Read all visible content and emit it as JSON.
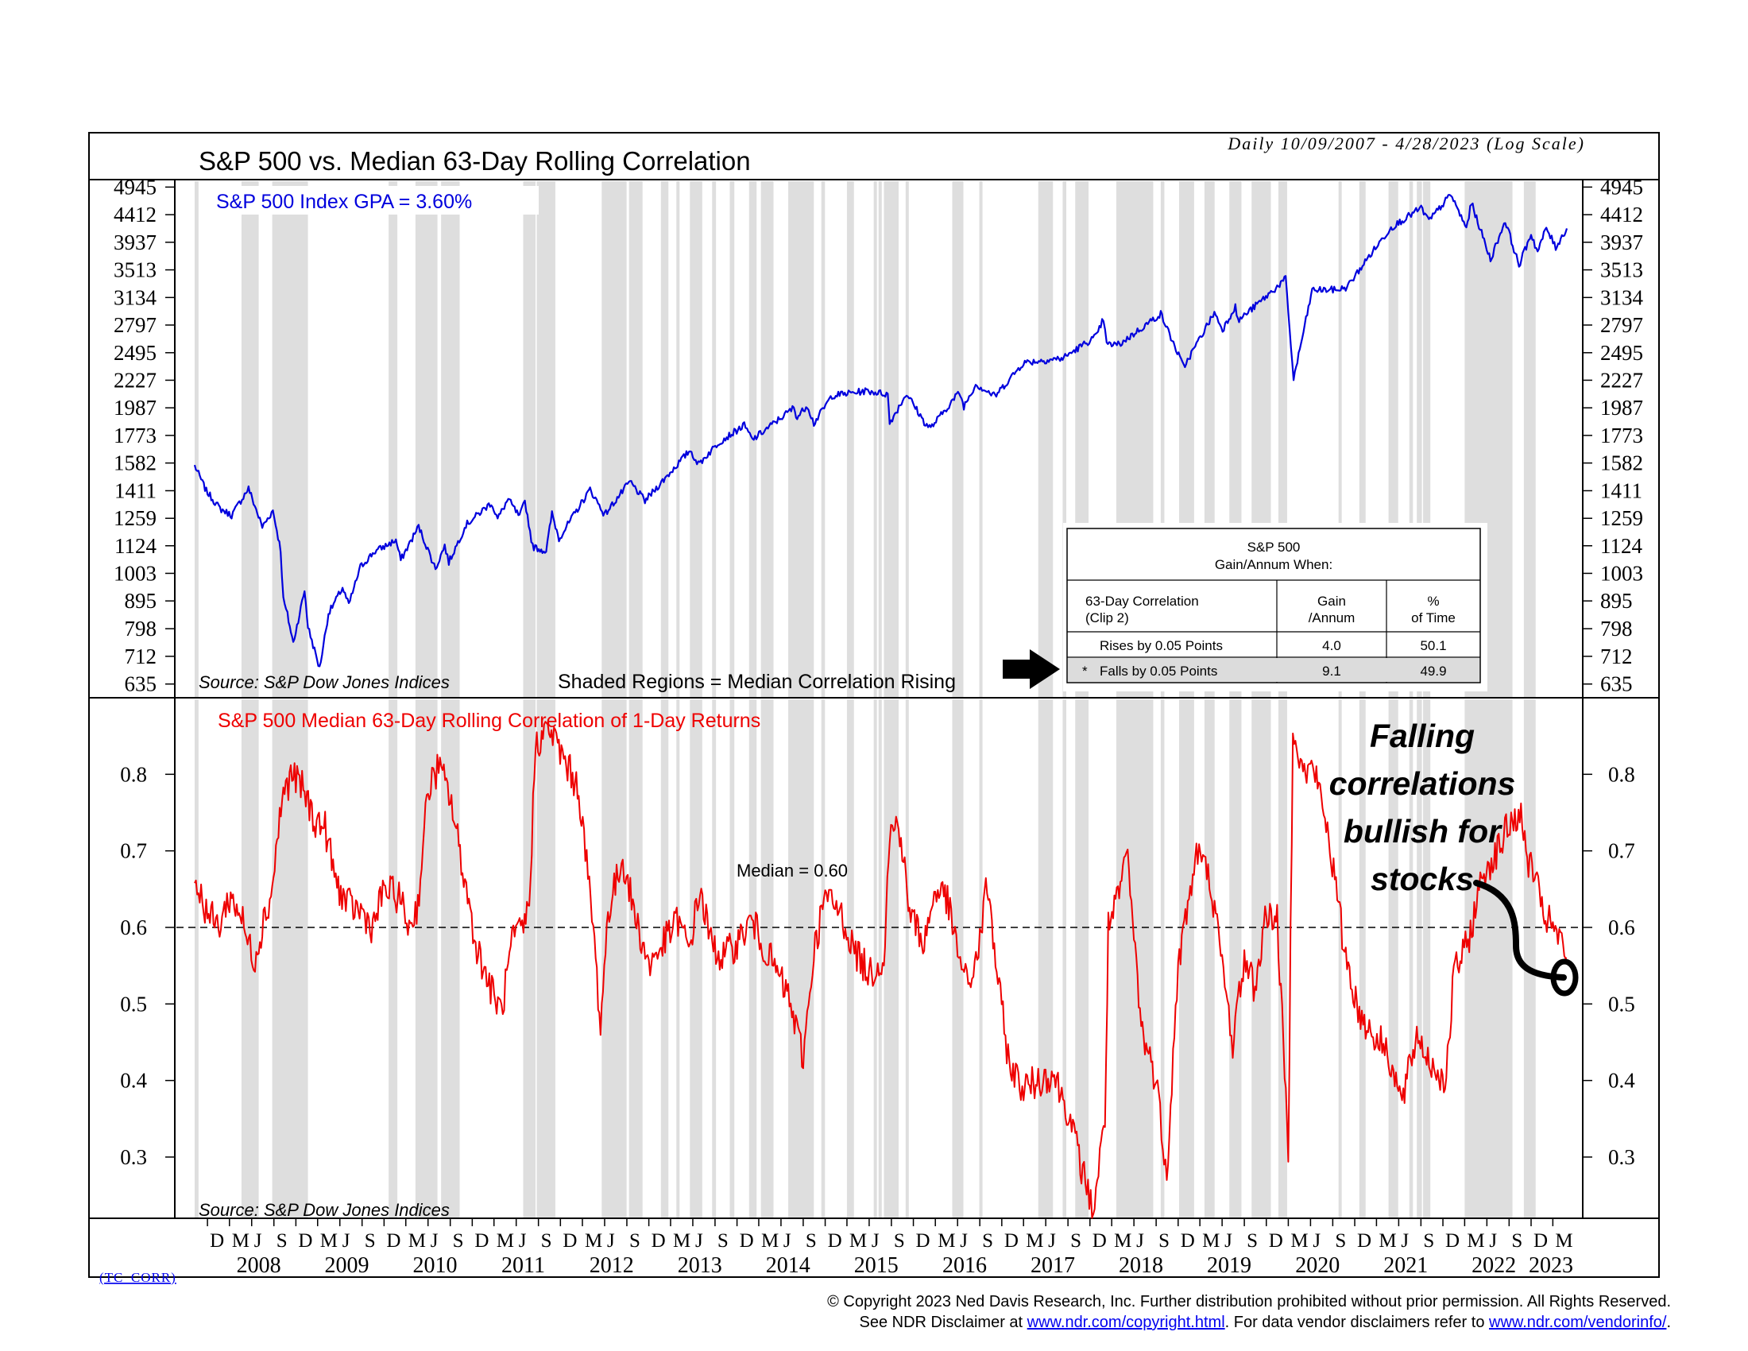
{
  "header": {
    "title": "S&P 500 vs. Median 63-Day Rolling Correlation",
    "date_range": "Daily 10/09/2007 - 4/28/2023 (Log Scale)"
  },
  "top_panel": {
    "series_label": "S&P 500 Index GPA = 3.60%",
    "source": "Source: S&P Dow Jones Indices",
    "shaded_note": "Shaded Regions = Median Correlation Rising",
    "y_ticks": [
      "4945",
      "4412",
      "3937",
      "3513",
      "3134",
      "2797",
      "2495",
      "2227",
      "1987",
      "1773",
      "1582",
      "1411",
      "1259",
      "1124",
      "1003",
      "895",
      "798",
      "712",
      "635"
    ],
    "line_color": "#0000dd"
  },
  "bottom_panel": {
    "series_label": "S&P 500 Median 63-Day Rolling Correlation of 1-Day Returns",
    "source": "Source: S&P Dow Jones Indices",
    "median_label": "Median = 0.60",
    "y_ticks": [
      "0.8",
      "0.7",
      "0.6",
      "0.5",
      "0.4",
      "0.3"
    ],
    "line_color": "#ee0000"
  },
  "table": {
    "title_line1": "S&P 500",
    "title_line2": "Gain/Annum When:",
    "col1_line1": "63-Day Correlation",
    "col1_line2": "(Clip 2)",
    "col2_line1": "Gain",
    "col2_line2": "/Annum",
    "col3_line1": "%",
    "col3_line2": "of Time",
    "row1_label": "Rises by 0.05 Points",
    "row1_gain": "4.0",
    "row1_pct": "50.1",
    "row2_marker": "*",
    "row2_label": "Falls by 0.05 Points",
    "row2_gain": "9.1",
    "row2_pct": "49.9"
  },
  "annotation": {
    "line1": "Falling",
    "line2": "correlations",
    "line3": "bullish for",
    "line4": "stocks"
  },
  "x_axis": {
    "month_letters": [
      "D",
      "M",
      "J",
      "S"
    ],
    "years": [
      "2008",
      "2009",
      "2010",
      "2011",
      "2012",
      "2013",
      "2014",
      "2015",
      "2016",
      "2017",
      "2018",
      "2019",
      "2020",
      "2021",
      "2022",
      "2023"
    ]
  },
  "footer": {
    "code": "(TC_CORR)",
    "copyright": "© Copyright 2023 Ned Davis Research, Inc.  Further distribution prohibited without prior permission.  All Rights Reserved.",
    "disclaimer_prefix": "See NDR Disclaimer at ",
    "disclaimer_link1": "www.ndr.com/copyright.html",
    "disclaimer_mid": ". For data vendor disclaimers refer to ",
    "disclaimer_link2": "www.ndr.com/vendorinfo/",
    "disclaimer_suffix": "."
  },
  "chart_data": {
    "type": "line",
    "x_range": [
      "2007-10-09",
      "2023-04-28"
    ],
    "top": {
      "name": "S&P 500 Index",
      "scale": "log",
      "ylim": [
        600,
        5100
      ],
      "points": [
        [
          "2007-10-09",
          1565
        ],
        [
          "2007-11-26",
          1410
        ],
        [
          "2008-01-22",
          1310
        ],
        [
          "2008-03-10",
          1275
        ],
        [
          "2008-05-19",
          1425
        ],
        [
          "2008-07-15",
          1215
        ],
        [
          "2008-08-28",
          1300
        ],
        [
          "2008-09-29",
          1105
        ],
        [
          "2008-10-10",
          900
        ],
        [
          "2008-10-27",
          845
        ],
        [
          "2008-11-20",
          752
        ],
        [
          "2009-01-06",
          935
        ],
        [
          "2009-01-20",
          805
        ],
        [
          "2009-03-09",
          677
        ],
        [
          "2009-04-15",
          850
        ],
        [
          "2009-06-12",
          945
        ],
        [
          "2009-07-08",
          880
        ],
        [
          "2009-08-25",
          1030
        ],
        [
          "2009-10-20",
          1095
        ],
        [
          "2010-01-19",
          1150
        ],
        [
          "2010-02-08",
          1060
        ],
        [
          "2010-04-23",
          1217
        ],
        [
          "2010-07-02",
          1022
        ],
        [
          "2010-08-09",
          1125
        ],
        [
          "2010-08-26",
          1050
        ],
        [
          "2010-11-05",
          1225
        ],
        [
          "2011-02-18",
          1343
        ],
        [
          "2011-03-16",
          1256
        ],
        [
          "2011-04-29",
          1363
        ],
        [
          "2011-06-15",
          1265
        ],
        [
          "2011-07-07",
          1353
        ],
        [
          "2011-08-08",
          1120
        ],
        [
          "2011-10-03",
          1099
        ],
        [
          "2011-10-27",
          1285
        ],
        [
          "2011-11-25",
          1158
        ],
        [
          "2012-04-02",
          1419
        ],
        [
          "2012-06-01",
          1278
        ],
        [
          "2012-09-14",
          1465
        ],
        [
          "2012-11-15",
          1353
        ],
        [
          "2013-05-21",
          1669
        ],
        [
          "2013-06-24",
          1573
        ],
        [
          "2013-09-18",
          1725
        ],
        [
          "2013-12-31",
          1848
        ],
        [
          "2014-02-03",
          1741
        ],
        [
          "2014-07-24",
          1988
        ],
        [
          "2014-08-07",
          1909
        ],
        [
          "2014-09-18",
          2011
        ],
        [
          "2014-10-15",
          1862
        ],
        [
          "2014-12-29",
          2090
        ],
        [
          "2015-05-21",
          2131
        ],
        [
          "2015-08-17",
          2102
        ],
        [
          "2015-08-25",
          1867
        ],
        [
          "2015-11-03",
          2109
        ],
        [
          "2016-01-20",
          1859
        ],
        [
          "2016-02-11",
          1829
        ],
        [
          "2016-06-08",
          2119
        ],
        [
          "2016-06-27",
          2000
        ],
        [
          "2016-08-15",
          2190
        ],
        [
          "2016-11-03",
          2085
        ],
        [
          "2017-03-01",
          2395
        ],
        [
          "2017-08-10",
          2438
        ],
        [
          "2017-12-29",
          2674
        ],
        [
          "2018-01-26",
          2873
        ],
        [
          "2018-02-08",
          2581
        ],
        [
          "2018-04-02",
          2582
        ],
        [
          "2018-09-20",
          2930
        ],
        [
          "2018-12-24",
          2351
        ],
        [
          "2019-04-30",
          2946
        ],
        [
          "2019-06-03",
          2744
        ],
        [
          "2019-07-26",
          3025
        ],
        [
          "2019-08-05",
          2844
        ],
        [
          "2019-12-31",
          3231
        ],
        [
          "2020-02-19",
          3386
        ],
        [
          "2020-03-23",
          2237
        ],
        [
          "2020-06-08",
          3232
        ],
        [
          "2020-09-23",
          3237
        ],
        [
          "2020-10-30",
          3270
        ],
        [
          "2021-01-29",
          3714
        ],
        [
          "2021-04-30",
          4181
        ],
        [
          "2021-09-02",
          4537
        ],
        [
          "2021-10-04",
          4300
        ],
        [
          "2022-01-03",
          4796
        ],
        [
          "2022-03-08",
          4170
        ],
        [
          "2022-03-29",
          4632
        ],
        [
          "2022-06-16",
          3667
        ],
        [
          "2022-08-16",
          4305
        ],
        [
          "2022-10-12",
          3577
        ],
        [
          "2022-12-01",
          4076
        ],
        [
          "2022-12-28",
          3783
        ],
        [
          "2023-02-02",
          4179
        ],
        [
          "2023-03-13",
          3855
        ],
        [
          "2023-04-28",
          4169
        ]
      ]
    },
    "bottom": {
      "name": "S&P 500 Median 63-Day Rolling Correlation of 1-Day Returns",
      "ylim": [
        0.22,
        0.9
      ],
      "median": 0.6,
      "points": [
        [
          "2007-10-09",
          0.66
        ],
        [
          "2007-12-01",
          0.62
        ],
        [
          "2008-01-15",
          0.6
        ],
        [
          "2008-03-01",
          0.64
        ],
        [
          "2008-04-15",
          0.62
        ],
        [
          "2008-05-15",
          0.58
        ],
        [
          "2008-06-15",
          0.56
        ],
        [
          "2008-07-20",
          0.61
        ],
        [
          "2008-08-20",
          0.64
        ],
        [
          "2008-10-05",
          0.77
        ],
        [
          "2008-11-15",
          0.8
        ],
        [
          "2009-01-01",
          0.78
        ],
        [
          "2009-02-15",
          0.74
        ],
        [
          "2009-04-01",
          0.73
        ],
        [
          "2009-05-15",
          0.66
        ],
        [
          "2009-07-01",
          0.63
        ],
        [
          "2009-09-01",
          0.62
        ],
        [
          "2009-10-15",
          0.6
        ],
        [
          "2009-12-01",
          0.65
        ],
        [
          "2010-02-01",
          0.64
        ],
        [
          "2010-03-15",
          0.6
        ],
        [
          "2010-04-20",
          0.63
        ],
        [
          "2010-06-01",
          0.78
        ],
        [
          "2010-07-15",
          0.81
        ],
        [
          "2010-09-01",
          0.77
        ],
        [
          "2010-11-01",
          0.66
        ],
        [
          "2010-12-15",
          0.58
        ],
        [
          "2011-02-15",
          0.52
        ],
        [
          "2011-04-01",
          0.49
        ],
        [
          "2011-05-15",
          0.58
        ],
        [
          "2011-07-01",
          0.6
        ],
        [
          "2011-07-25",
          0.63
        ],
        [
          "2011-08-20",
          0.84
        ],
        [
          "2011-10-15",
          0.86
        ],
        [
          "2011-12-15",
          0.82
        ],
        [
          "2012-02-15",
          0.78
        ],
        [
          "2012-04-15",
          0.6
        ],
        [
          "2012-05-15",
          0.47
        ],
        [
          "2012-06-15",
          0.62
        ],
        [
          "2012-08-15",
          0.69
        ],
        [
          "2012-10-01",
          0.62
        ],
        [
          "2012-12-01",
          0.55
        ],
        [
          "2013-02-01",
          0.58
        ],
        [
          "2013-04-01",
          0.61
        ],
        [
          "2013-05-15",
          0.57
        ],
        [
          "2013-07-01",
          0.65
        ],
        [
          "2013-08-15",
          0.58
        ],
        [
          "2013-10-01",
          0.56
        ],
        [
          "2013-12-01",
          0.58
        ],
        [
          "2014-02-01",
          0.61
        ],
        [
          "2014-03-15",
          0.58
        ],
        [
          "2014-05-01",
          0.55
        ],
        [
          "2014-07-01",
          0.51
        ],
        [
          "2014-09-01",
          0.43
        ],
        [
          "2014-10-15",
          0.57
        ],
        [
          "2014-12-01",
          0.64
        ],
        [
          "2015-02-01",
          0.62
        ],
        [
          "2015-04-01",
          0.57
        ],
        [
          "2015-06-01",
          0.54
        ],
        [
          "2015-08-01",
          0.56
        ],
        [
          "2015-08-25",
          0.72
        ],
        [
          "2015-10-01",
          0.74
        ],
        [
          "2015-11-15",
          0.62
        ],
        [
          "2016-01-15",
          0.58
        ],
        [
          "2016-03-01",
          0.65
        ],
        [
          "2016-04-15",
          0.64
        ],
        [
          "2016-06-01",
          0.57
        ],
        [
          "2016-07-15",
          0.52
        ],
        [
          "2016-09-01",
          0.58
        ],
        [
          "2016-10-01",
          0.66
        ],
        [
          "2016-11-15",
          0.53
        ],
        [
          "2017-01-01",
          0.42
        ],
        [
          "2017-03-01",
          0.39
        ],
        [
          "2017-05-01",
          0.4
        ],
        [
          "2017-07-01",
          0.41
        ],
        [
          "2017-09-01",
          0.36
        ],
        [
          "2017-11-01",
          0.28
        ],
        [
          "2017-12-15",
          0.23
        ],
        [
          "2018-02-01",
          0.35
        ],
        [
          "2018-02-15",
          0.6
        ],
        [
          "2018-04-01",
          0.64
        ],
        [
          "2018-05-01",
          0.7
        ],
        [
          "2018-06-01",
          0.59
        ],
        [
          "2018-07-01",
          0.47
        ],
        [
          "2018-09-01",
          0.4
        ],
        [
          "2018-10-15",
          0.28
        ],
        [
          "2018-12-01",
          0.55
        ],
        [
          "2019-01-15",
          0.64
        ],
        [
          "2019-02-20",
          0.7
        ],
        [
          "2019-04-15",
          0.66
        ],
        [
          "2019-06-01",
          0.55
        ],
        [
          "2019-07-15",
          0.45
        ],
        [
          "2019-09-01",
          0.56
        ],
        [
          "2019-10-15",
          0.52
        ],
        [
          "2019-12-01",
          0.62
        ],
        [
          "2020-01-15",
          0.61
        ],
        [
          "2020-03-01",
          0.31
        ],
        [
          "2020-03-20",
          0.87
        ],
        [
          "2020-05-01",
          0.8
        ],
        [
          "2020-06-15",
          0.81
        ],
        [
          "2020-08-15",
          0.72
        ],
        [
          "2020-10-15",
          0.58
        ],
        [
          "2020-12-15",
          0.49
        ],
        [
          "2021-02-15",
          0.46
        ],
        [
          "2021-04-15",
          0.44
        ],
        [
          "2021-06-15",
          0.37
        ],
        [
          "2021-08-15",
          0.46
        ],
        [
          "2021-10-15",
          0.42
        ],
        [
          "2021-12-15",
          0.4
        ],
        [
          "2022-01-15",
          0.54
        ],
        [
          "2022-03-15",
          0.58
        ],
        [
          "2022-05-15",
          0.67
        ],
        [
          "2022-07-15",
          0.7
        ],
        [
          "2022-08-25",
          0.73
        ],
        [
          "2022-10-15",
          0.75
        ],
        [
          "2022-11-15",
          0.69
        ],
        [
          "2022-12-15",
          0.67
        ],
        [
          "2023-01-15",
          0.62
        ],
        [
          "2023-03-01",
          0.6
        ],
        [
          "2023-04-28",
          0.56
        ]
      ]
    },
    "shaded_regions": [
      [
        "2007-10-09",
        "2007-10-25"
      ],
      [
        "2008-04-20",
        "2008-06-30"
      ],
      [
        "2008-08-25",
        "2009-01-20"
      ],
      [
        "2009-12-20",
        "2010-01-25"
      ],
      [
        "2010-04-10",
        "2010-07-10"
      ],
      [
        "2010-07-25",
        "2010-10-10"
      ],
      [
        "2011-06-30",
        "2011-08-20"
      ],
      [
        "2011-08-25",
        "2011-11-10"
      ],
      [
        "2012-05-20",
        "2012-08-31"
      ],
      [
        "2012-09-10",
        "2012-11-05"
      ],
      [
        "2013-01-20",
        "2013-02-20"
      ],
      [
        "2013-03-25",
        "2013-04-05"
      ],
      [
        "2013-05-20",
        "2013-07-10"
      ],
      [
        "2013-08-20",
        "2013-09-05"
      ],
      [
        "2013-11-01",
        "2013-11-20"
      ],
      [
        "2014-01-20",
        "2014-02-20"
      ],
      [
        "2014-03-10",
        "2014-05-01"
      ],
      [
        "2014-07-01",
        "2014-10-15"
      ],
      [
        "2014-11-15",
        "2014-11-30"
      ],
      [
        "2015-03-01",
        "2015-03-30"
      ],
      [
        "2015-06-20",
        "2015-06-30"
      ],
      [
        "2015-07-10",
        "2015-07-20"
      ],
      [
        "2015-08-01",
        "2015-10-01"
      ],
      [
        "2015-10-30",
        "2015-11-10"
      ],
      [
        "2016-05-10",
        "2016-06-25"
      ],
      [
        "2016-08-30",
        "2016-09-10"
      ],
      [
        "2017-05-01",
        "2017-07-01"
      ],
      [
        "2017-08-10",
        "2017-08-25"
      ],
      [
        "2017-10-01",
        "2017-11-25"
      ],
      [
        "2018-03-20",
        "2018-08-20"
      ],
      [
        "2018-09-20",
        "2018-10-05"
      ],
      [
        "2018-12-05",
        "2019-02-05"
      ],
      [
        "2019-03-20",
        "2019-05-01"
      ],
      [
        "2019-07-01",
        "2019-08-20"
      ],
      [
        "2019-10-01",
        "2019-12-20"
      ],
      [
        "2020-01-20",
        "2020-02-25"
      ],
      [
        "2020-09-25",
        "2020-10-05"
      ],
      [
        "2020-12-20",
        "2021-01-15"
      ],
      [
        "2021-04-20",
        "2021-05-30"
      ],
      [
        "2021-07-15",
        "2021-07-30"
      ],
      [
        "2021-08-15",
        "2021-09-05"
      ],
      [
        "2021-09-10",
        "2021-10-10"
      ],
      [
        "2022-03-01",
        "2022-09-15"
      ],
      [
        "2022-11-01",
        "2022-12-20"
      ]
    ]
  }
}
